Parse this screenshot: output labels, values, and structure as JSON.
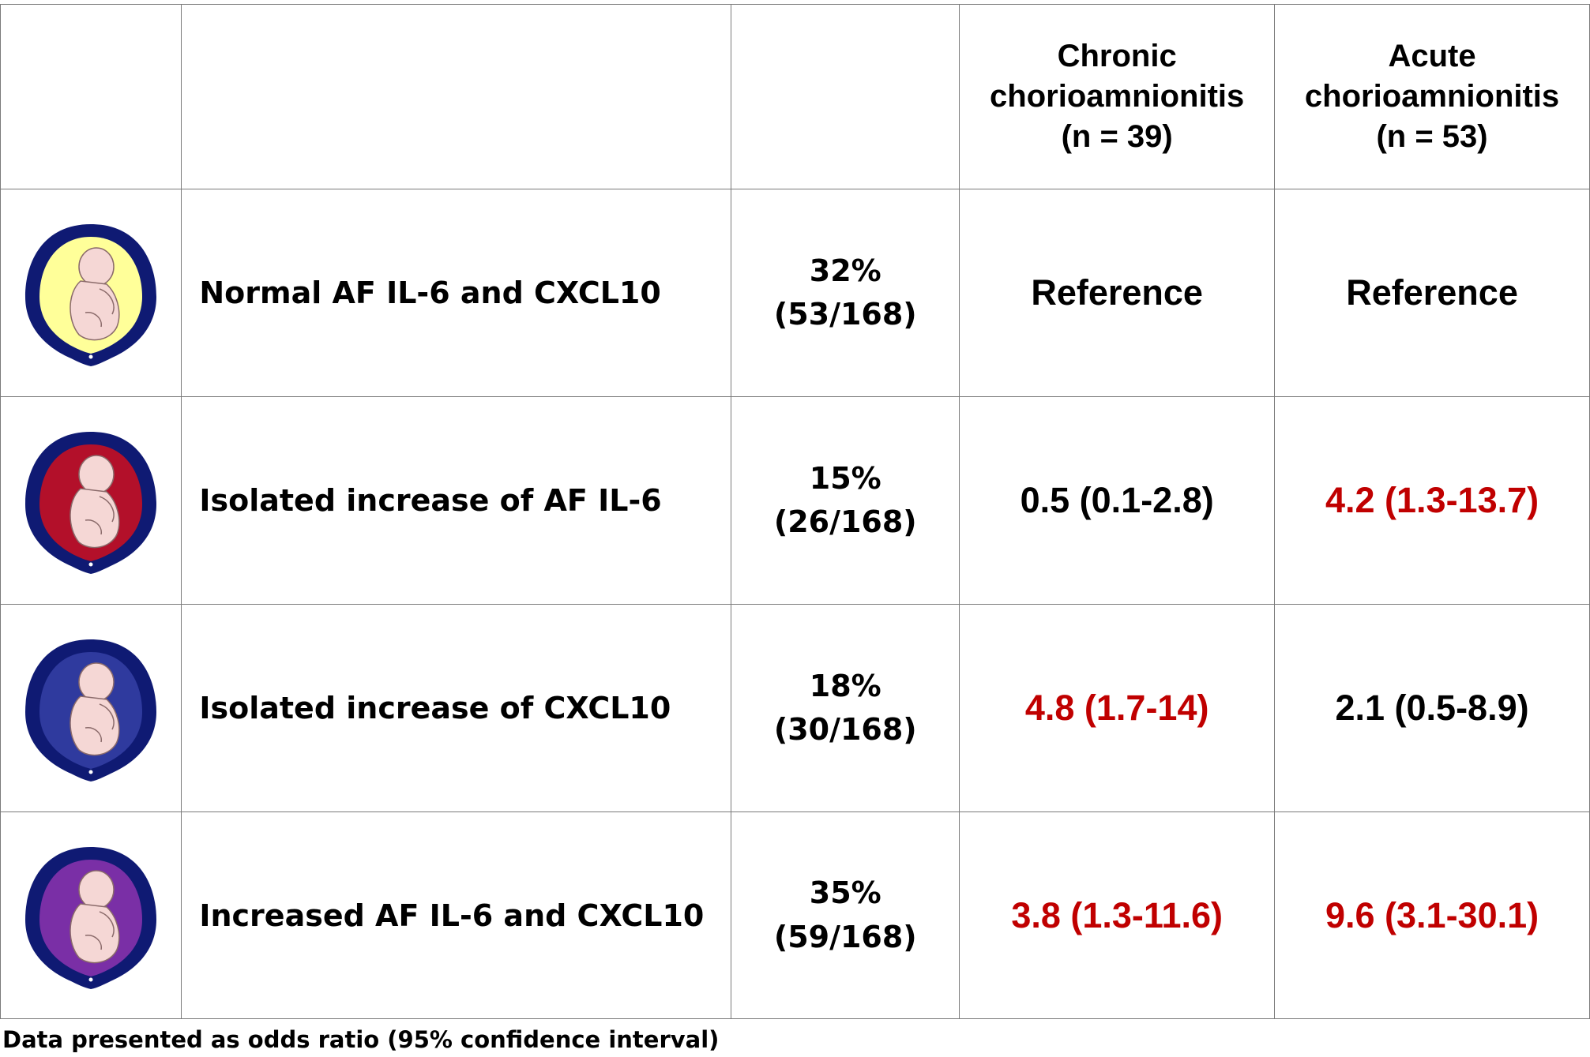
{
  "header": {
    "col_chronic": [
      "Chronic",
      "chorioamnionitis",
      "(n = 39)"
    ],
    "col_acute": [
      "Acute",
      "chorioamnionitis",
      "(n = 53)"
    ]
  },
  "rows": [
    {
      "icon": "uterus-fetus-normal-icon",
      "fluid_color": "#ffff99",
      "label": "Normal AF IL-6 and CXCL10",
      "pct": "32%",
      "count": "(53/168)",
      "chronic": "Reference",
      "acute": "Reference",
      "chronic_color": "#000000",
      "acute_color": "#000000"
    },
    {
      "icon": "uterus-fetus-il6-icon",
      "fluid_color": "#b3102a",
      "label": "Isolated increase of AF IL-6",
      "pct": "15%",
      "count": "(26/168)",
      "chronic": "0.5 (0.1-2.8)",
      "acute": "4.2 (1.3-13.7)",
      "chronic_color": "#000000",
      "acute_color": "#c00000"
    },
    {
      "icon": "uterus-fetus-cxcl10-icon",
      "fluid_color": "#2f3a9e",
      "label": "Isolated increase of CXCL10",
      "pct": "18%",
      "count": "(30/168)",
      "chronic": "4.8 (1.7-14)",
      "acute": "2.1 (0.5-8.9)",
      "chronic_color": "#c00000",
      "acute_color": "#000000"
    },
    {
      "icon": "uterus-fetus-both-icon",
      "fluid_color": "#7a2fa6",
      "label": "Increased AF IL-6 and CXCL10",
      "pct": "35%",
      "count": "(59/168)",
      "chronic": "3.8 (1.3-11.6)",
      "acute": "9.6 (3.1-30.1)",
      "chronic_color": "#c00000",
      "acute_color": "#c00000"
    }
  ],
  "footnote": "Data presented as odds ratio (95% confidence interval)"
}
